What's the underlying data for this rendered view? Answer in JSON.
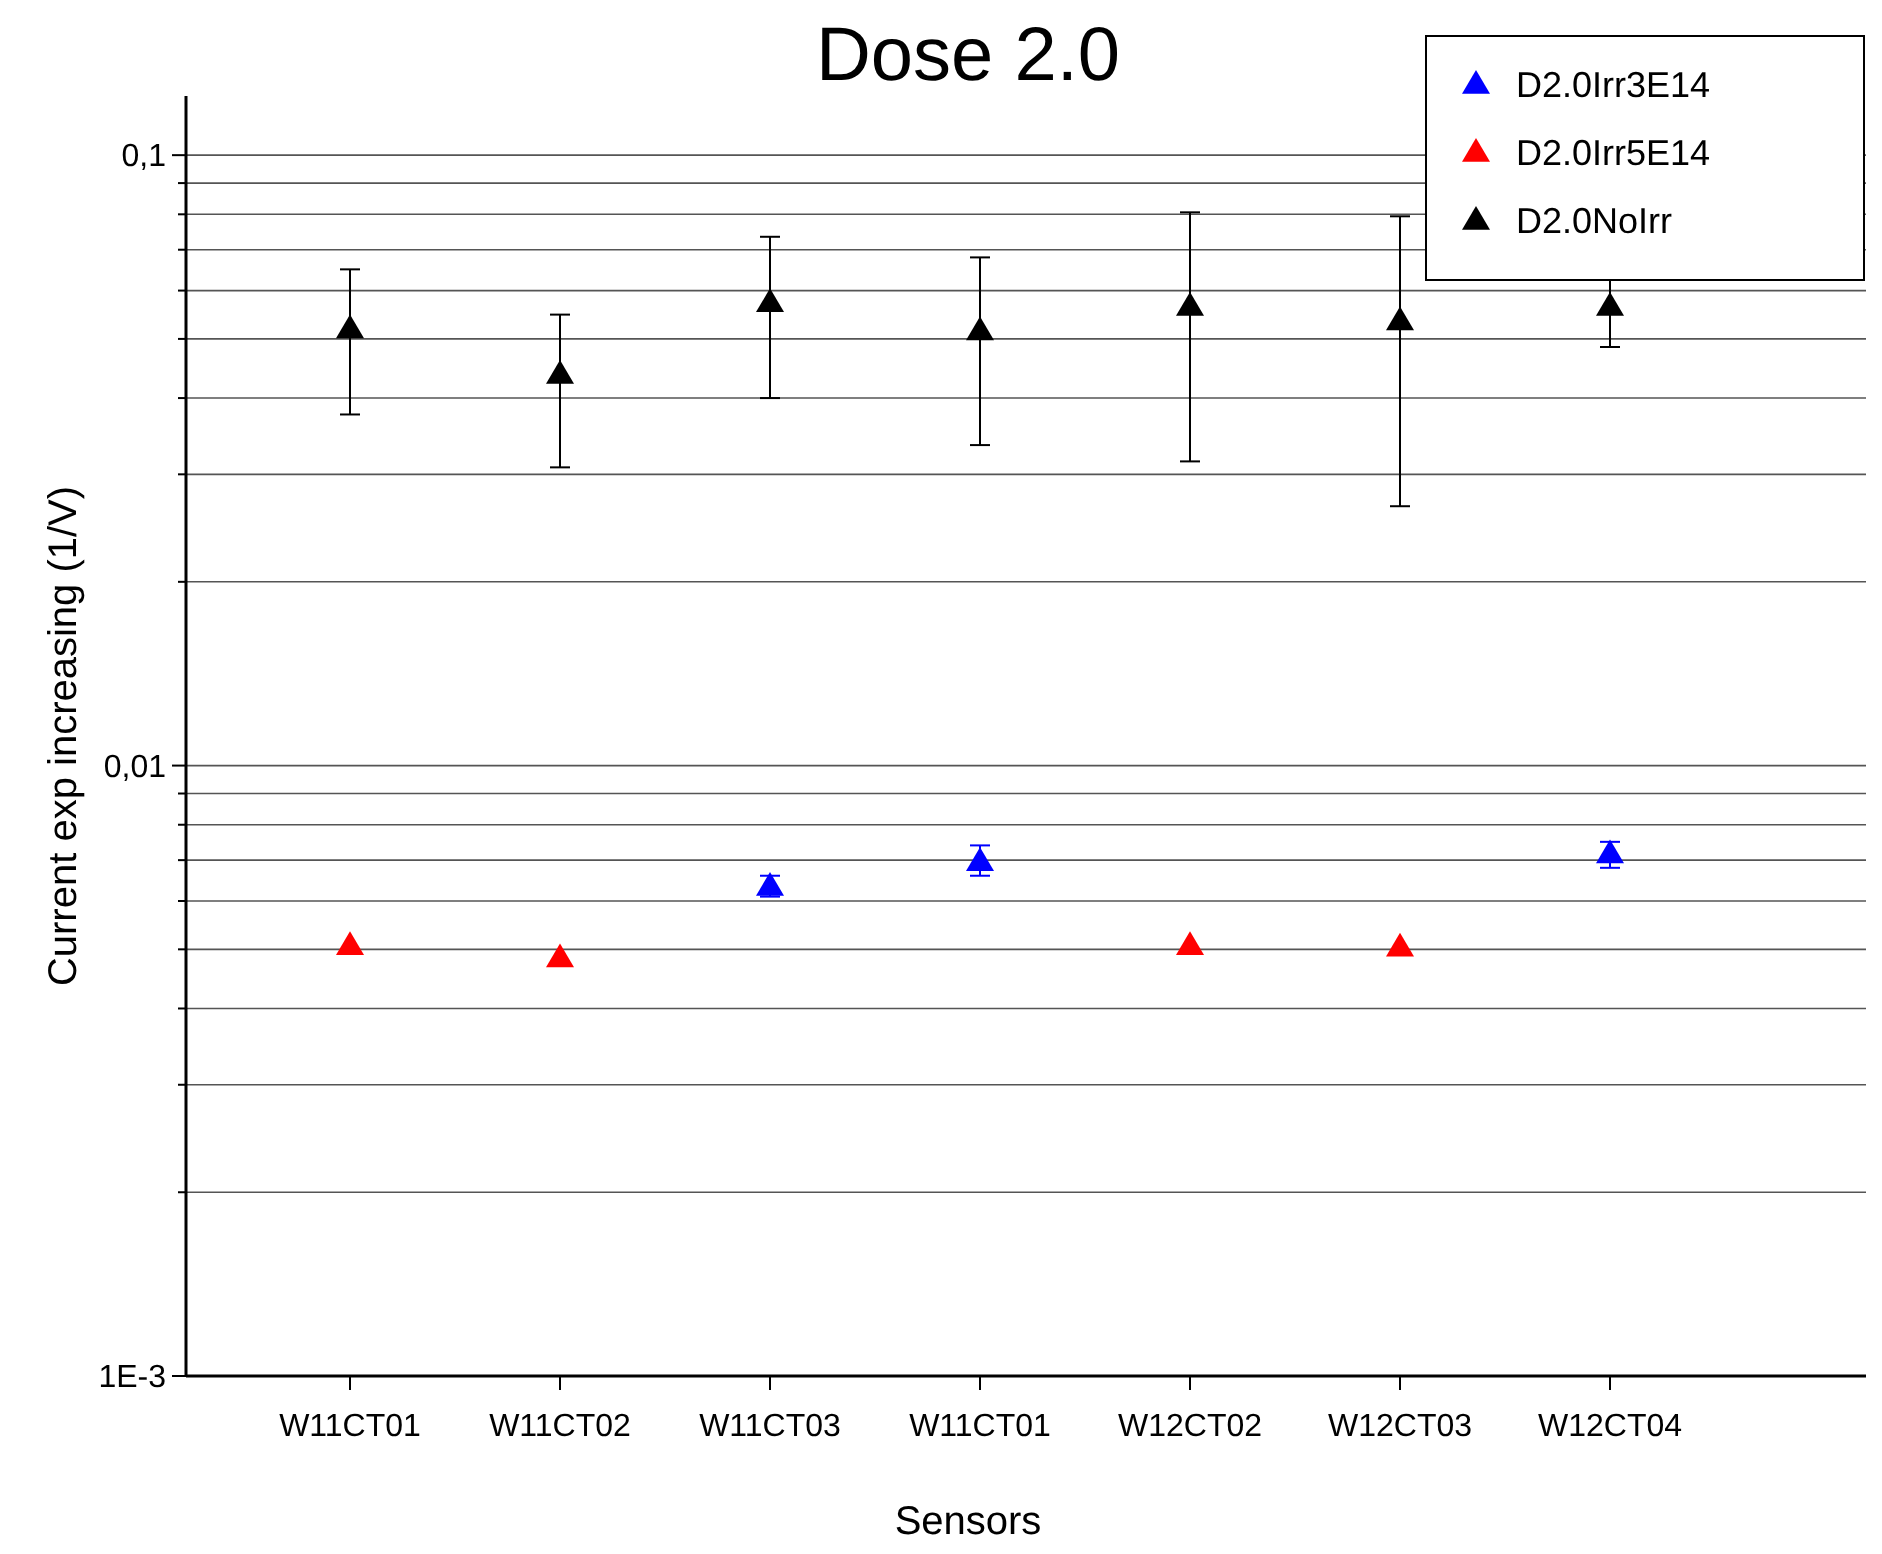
{
  "chart_data": {
    "type": "scatter",
    "title": "Dose 2.0",
    "xlabel": "Sensors",
    "ylabel": "Current exp increasing (1/V)",
    "categories": [
      "W11CT01",
      "W11CT02",
      "W11CT03",
      "W11CT01",
      "W12CT02",
      "W12CT03",
      "W12CT04"
    ],
    "series": [
      {
        "name": "D2.0Irr3E14",
        "color": "#0000ff",
        "values": [
          null,
          null,
          0.00635,
          0.00697,
          null,
          null,
          0.00718
        ],
        "errors": [
          null,
          null,
          [
            0.0061,
            0.0066
          ],
          [
            0.0066,
            0.0074
          ],
          null,
          null,
          [
            0.0068,
            0.0075
          ]
        ]
      },
      {
        "name": "D2.0Irr5E14",
        "color": "#ff0000",
        "values": [
          0.00508,
          0.00485,
          null,
          null,
          0.00508,
          0.00505,
          null
        ]
      },
      {
        "name": "D2.0NoIrr",
        "color": "#000000",
        "values": [
          0.052,
          0.0438,
          0.0574,
          0.0516,
          0.0566,
          0.0536,
          0.0566
        ],
        "errors": [
          [
            0.0376,
            0.065
          ],
          [
            0.0308,
            0.0548
          ],
          [
            0.04,
            0.0735
          ],
          [
            0.0335,
            0.068
          ],
          [
            0.0315,
            0.0806
          ],
          [
            0.0266,
            0.0794
          ],
          [
            0.0485,
            0.0635
          ]
        ]
      }
    ],
    "log": "y",
    "ylim": [
      0.001,
      0.125
    ],
    "yticks": [
      {
        "value": 0.001,
        "label": "1E-3"
      },
      {
        "value": 0.002,
        "label": null
      },
      {
        "value": 0.003,
        "label": null
      },
      {
        "value": 0.004,
        "label": null
      },
      {
        "value": 0.005,
        "label": null
      },
      {
        "value": 0.006,
        "label": null
      },
      {
        "value": 0.007,
        "label": null
      },
      {
        "value": 0.008,
        "label": null
      },
      {
        "value": 0.009,
        "label": null
      },
      {
        "value": 0.01,
        "label": "0,01"
      },
      {
        "value": 0.02,
        "label": null
      },
      {
        "value": 0.03,
        "label": null
      },
      {
        "value": 0.04,
        "label": null
      },
      {
        "value": 0.05,
        "label": null
      },
      {
        "value": 0.06,
        "label": null
      },
      {
        "value": 0.07,
        "label": null
      },
      {
        "value": 0.08,
        "label": null
      },
      {
        "value": 0.09,
        "label": null
      },
      {
        "value": 0.1,
        "label": "0,1"
      }
    ],
    "grid": "y",
    "legend": "top right",
    "marker": "triangle"
  }
}
